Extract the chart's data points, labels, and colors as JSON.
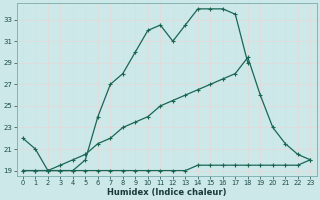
{
  "xlabel": "Humidex (Indice chaleur)",
  "bg_color": "#cce8e8",
  "grid_color": "#f0f0f0",
  "line_color": "#1a6655",
  "xlim": [
    -0.5,
    23.5
  ],
  "ylim": [
    18.5,
    34.5
  ],
  "yticks": [
    19,
    21,
    23,
    25,
    27,
    29,
    31,
    33
  ],
  "xticks": [
    0,
    1,
    2,
    3,
    4,
    5,
    6,
    7,
    8,
    9,
    10,
    11,
    12,
    13,
    14,
    15,
    16,
    17,
    18,
    19,
    20,
    21,
    22,
    23
  ],
  "line1_x": [
    0,
    1,
    2,
    3,
    4,
    5,
    6,
    7,
    8,
    9,
    10,
    11,
    12,
    13,
    14,
    15,
    16,
    17,
    18,
    19,
    20,
    21,
    22,
    23
  ],
  "line1_y": [
    22.0,
    21.0,
    19.0,
    19.0,
    19.0,
    20.0,
    24.0,
    27.0,
    28.0,
    30.0,
    32.0,
    32.5,
    31.0,
    32.5,
    34.0,
    34.0,
    34.0,
    33.5,
    29.0,
    null,
    null,
    null,
    null,
    null
  ],
  "line2_x": [
    0,
    1,
    2,
    3,
    4,
    5,
    6,
    7,
    8,
    9,
    10,
    11,
    12,
    13,
    14,
    15,
    16,
    17,
    18,
    19,
    20,
    21,
    22,
    23
  ],
  "line2_y": [
    19.0,
    19.0,
    19.0,
    19.0,
    19.0,
    19.0,
    19.0,
    19.0,
    19.0,
    19.0,
    19.0,
    19.0,
    19.0,
    19.0,
    19.5,
    19.5,
    19.5,
    19.5,
    19.5,
    19.5,
    19.5,
    19.5,
    19.5,
    20.0
  ],
  "line3_x": [
    0,
    1,
    2,
    3,
    4,
    5,
    6,
    7,
    8,
    9,
    10,
    11,
    12,
    13,
    14,
    15,
    16,
    17,
    18,
    19,
    20,
    21,
    22,
    23
  ],
  "line3_y": [
    19.0,
    19.0,
    19.0,
    19.5,
    20.0,
    20.5,
    21.5,
    22.0,
    23.0,
    23.5,
    24.0,
    25.0,
    25.5,
    26.0,
    26.5,
    27.0,
    27.5,
    28.0,
    29.5,
    26.0,
    23.0,
    21.5,
    20.5,
    20.0
  ]
}
